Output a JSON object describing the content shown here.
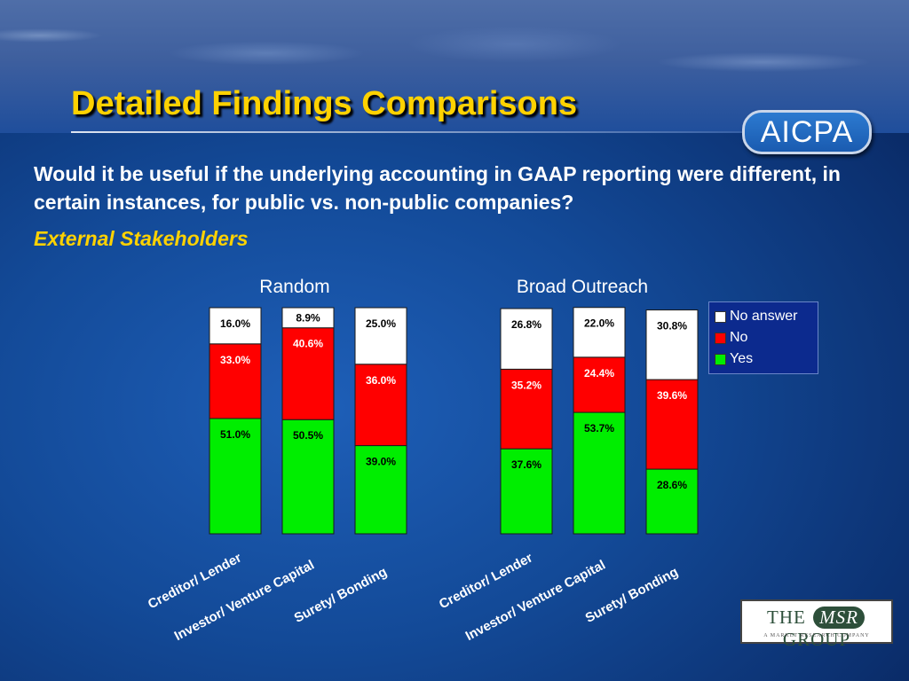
{
  "header": {
    "title": "Detailed Findings Comparisons",
    "logo_text": "AICPA"
  },
  "question": "Would it be useful if the underlying accounting in GAAP reporting were different, in certain instances, for public vs. non-public companies?",
  "subtitle": "External Stakeholders",
  "footer_logo": {
    "left": "THE",
    "middle": "MSR",
    "right": "GROUP",
    "tagline": "A MARKET RESEARCH COMPANY"
  },
  "colors": {
    "yes": "#00ee00",
    "no": "#ff0000",
    "no_answer": "#ffffff",
    "title": "#ffd200"
  },
  "chart_data": [
    {
      "type": "bar",
      "stacked": true,
      "title": "Random",
      "categories": [
        "Creditor/ Lender",
        "Investor/ Venture Capital",
        "Surety/ Bonding"
      ],
      "series": [
        {
          "name": "Yes",
          "values": [
            51.0,
            50.5,
            39.0
          ],
          "labels": [
            "51.0%",
            "50.5%",
            "39.0%"
          ]
        },
        {
          "name": "No",
          "values": [
            33.0,
            40.6,
            36.0
          ],
          "labels": [
            "33.0%",
            "40.6%",
            "36.0%"
          ]
        },
        {
          "name": "No answer",
          "values": [
            16.0,
            8.9,
            25.0
          ],
          "labels": [
            "16.0%",
            "8.9%",
            "25.0%"
          ]
        }
      ],
      "ylim": [
        0,
        100
      ],
      "legend": "right"
    },
    {
      "type": "bar",
      "stacked": true,
      "title": "Broad Outreach",
      "categories": [
        "Creditor/ Lender",
        "Investor/ Venture Capital",
        "Surety/ Bonding"
      ],
      "series": [
        {
          "name": "Yes",
          "values": [
            37.6,
            53.7,
            28.6
          ],
          "labels": [
            "37.6%",
            "53.7%",
            "28.6%"
          ]
        },
        {
          "name": "No",
          "values": [
            35.2,
            24.4,
            39.6
          ],
          "labels": [
            "35.2%",
            "24.4%",
            "39.6%"
          ]
        },
        {
          "name": "No answer",
          "values": [
            26.8,
            22.0,
            30.8
          ],
          "labels": [
            "26.8%",
            "22.0%",
            "30.8%"
          ]
        }
      ],
      "ylim": [
        0,
        100
      ],
      "legend": "right"
    }
  ],
  "legend_items": [
    {
      "label": "No answer",
      "color": "#ffffff"
    },
    {
      "label": "No",
      "color": "#ff0000"
    },
    {
      "label": "Yes",
      "color": "#00ee00"
    }
  ]
}
